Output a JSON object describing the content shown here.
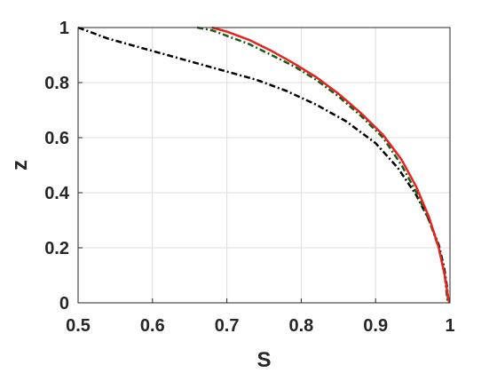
{
  "chart_data": {
    "type": "line",
    "title": "",
    "xlabel": "S",
    "ylabel": "z",
    "xlim": [
      0.5,
      1
    ],
    "ylim": [
      0,
      1
    ],
    "xticks": [
      0.5,
      0.6,
      0.7,
      0.8,
      0.9,
      1
    ],
    "yticks": [
      0,
      0.2,
      0.4,
      0.6,
      0.8,
      1
    ],
    "xtick_labels": [
      "0.5",
      "0.6",
      "0.7",
      "0.8",
      "0.9",
      "1"
    ],
    "ytick_labels": [
      "0",
      "0.2",
      "0.4",
      "0.6",
      "0.8",
      "1"
    ],
    "grid": true,
    "series": [
      {
        "color": "#000000",
        "style": "dash-dot",
        "x": [
          0.5,
          0.54,
          0.58,
          0.62,
          0.66,
          0.7,
          0.74,
          0.78,
          0.82,
          0.86,
          0.9,
          0.93,
          0.955,
          0.972,
          0.985,
          0.992,
          0.996,
          0.998
        ],
        "y": [
          1.0,
          0.96,
          0.93,
          0.9,
          0.87,
          0.84,
          0.81,
          0.77,
          0.72,
          0.66,
          0.58,
          0.49,
          0.39,
          0.3,
          0.21,
          0.13,
          0.06,
          0.0
        ]
      },
      {
        "color": "#1a5c1a",
        "style": "dash-dot",
        "x": [
          0.66,
          0.68,
          0.7,
          0.73,
          0.76,
          0.79,
          0.82,
          0.85,
          0.88,
          0.91,
          0.935,
          0.955,
          0.972,
          0.985,
          0.993,
          0.997
        ],
        "y": [
          1.0,
          0.99,
          0.97,
          0.94,
          0.9,
          0.86,
          0.81,
          0.75,
          0.68,
          0.6,
          0.5,
          0.4,
          0.3,
          0.2,
          0.1,
          0.0
        ]
      },
      {
        "color": "#e8231e",
        "style": "solid",
        "x": [
          0.68,
          0.7,
          0.73,
          0.76,
          0.79,
          0.82,
          0.85,
          0.88,
          0.91,
          0.935,
          0.955,
          0.972,
          0.985,
          0.993,
          0.997,
          0.999
        ],
        "y": [
          1.0,
          0.985,
          0.955,
          0.915,
          0.87,
          0.82,
          0.76,
          0.69,
          0.61,
          0.52,
          0.42,
          0.31,
          0.2,
          0.1,
          0.03,
          0.0
        ]
      }
    ]
  }
}
